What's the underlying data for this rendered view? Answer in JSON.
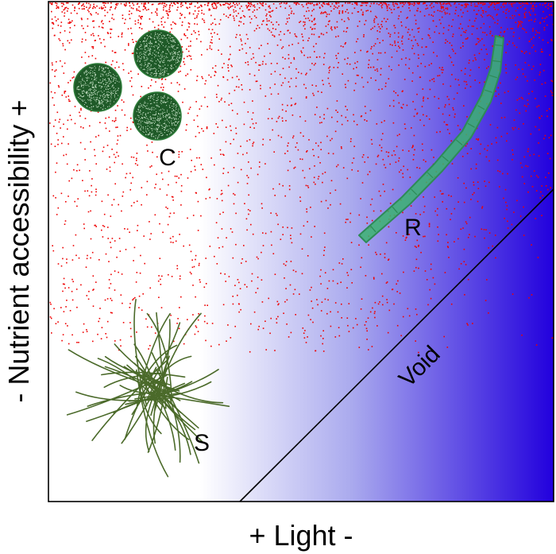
{
  "axes": {
    "x_label": "+ Light -",
    "y_label": "- Nutrient accessibility +"
  },
  "regions": {
    "c_label": "C",
    "r_label": "R",
    "s_label": "S",
    "void_label": "Void"
  },
  "colors": {
    "gradient_start": "#ffffff",
    "gradient_end": "#2200dd",
    "nutrient_dots": "#ee0000",
    "colony_fill": "#1f5a28",
    "filament_fill": "#3cb371",
    "star_strands": "#4b6a2a"
  }
}
